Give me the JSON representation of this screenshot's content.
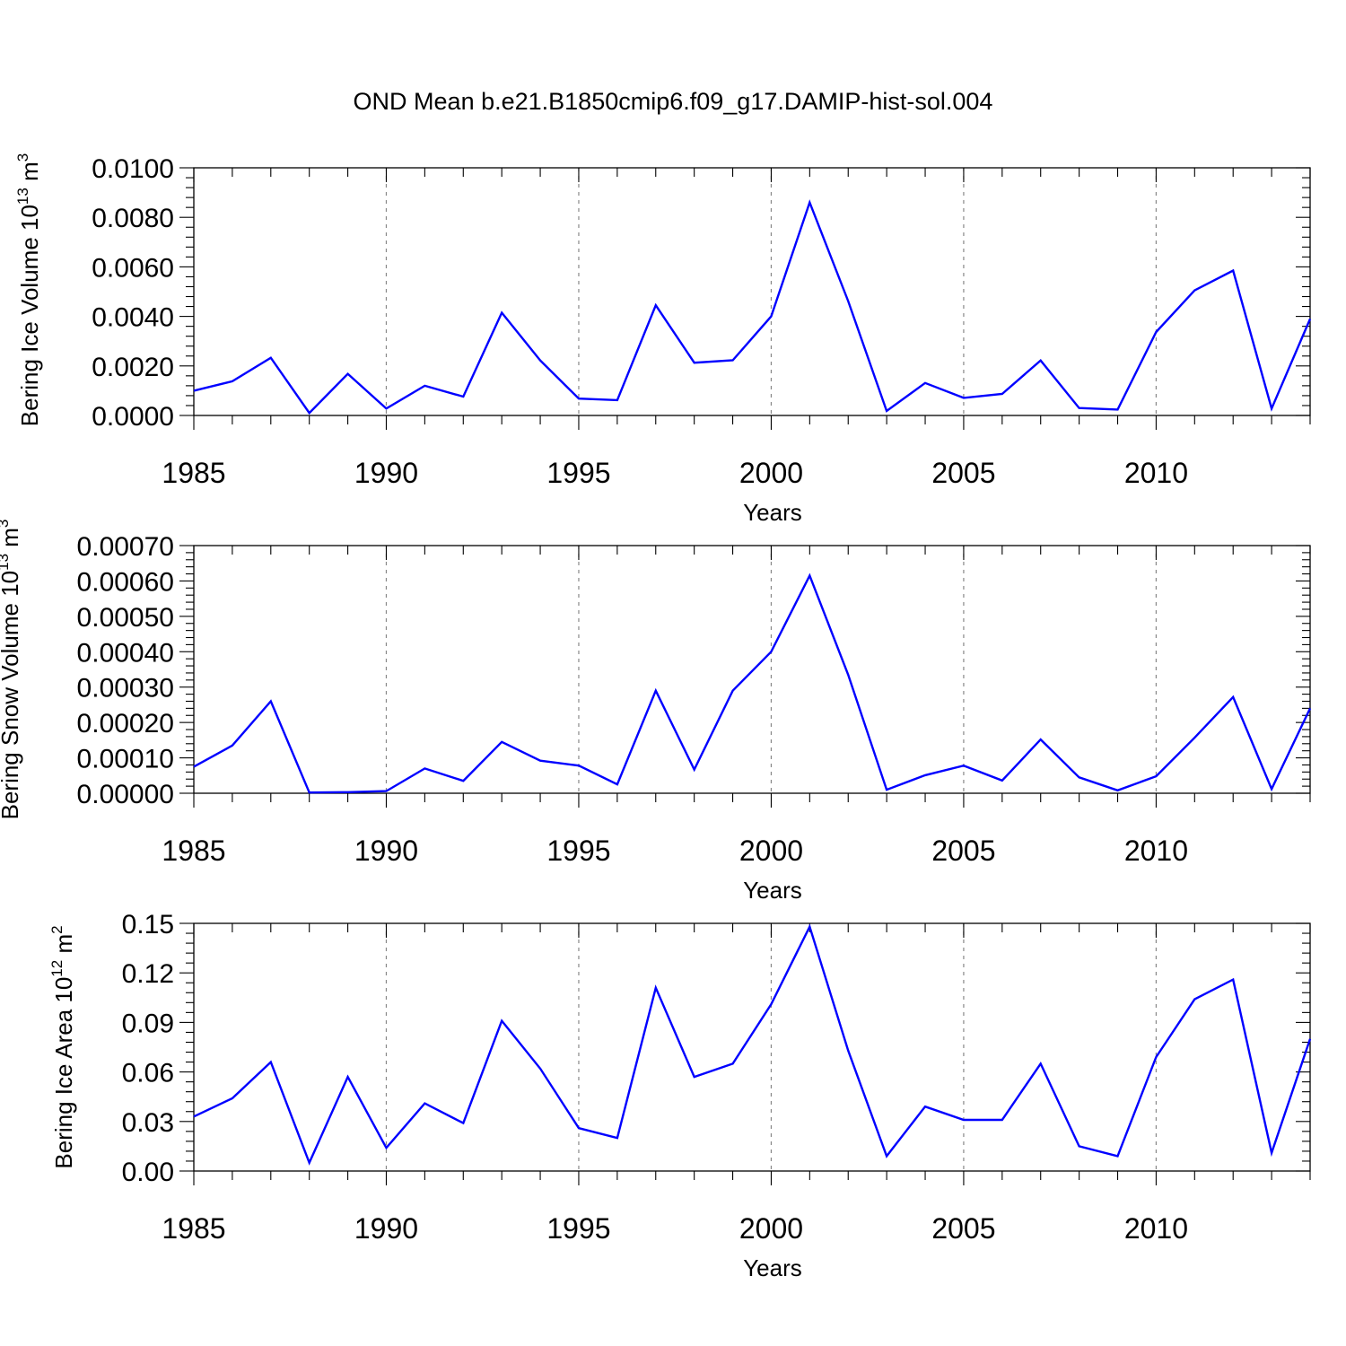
{
  "title": "OND Mean b.e21.B1850cmip6.f09_g17.DAMIP-hist-sol.004",
  "colors": {
    "line": "#0000ff",
    "axis": "#000000",
    "grid": "#888888"
  },
  "chart_data": [
    {
      "type": "line",
      "xlabel": "Years",
      "ylabel": "Bering Ice Volume 10",
      "ylabel_exponent": "13",
      "ylabel_unit": "m",
      "ylabel_unit_exponent": "3",
      "xlim": [
        1985,
        2014
      ],
      "ylim": [
        0,
        0.01
      ],
      "yticks": [
        "0.0100",
        "0.0080",
        "0.0060",
        "0.0040",
        "0.0020",
        "0.0000"
      ],
      "ytick_values": [
        0.01,
        0.008,
        0.006,
        0.004,
        0.002,
        0.0
      ],
      "xticks": [
        "1985",
        "1990",
        "1995",
        "2000",
        "2005",
        "2010"
      ],
      "xtick_values": [
        1985,
        1990,
        1995,
        2000,
        2005,
        2010
      ],
      "grid_x": [
        1990,
        1995,
        2000,
        2005,
        2010
      ],
      "x": [
        1985,
        1986,
        1987,
        1988,
        1989,
        1990,
        1991,
        1992,
        1993,
        1994,
        1995,
        1996,
        1997,
        1998,
        1999,
        2000,
        2001,
        2002,
        2003,
        2004,
        2005,
        2006,
        2007,
        2008,
        2009,
        2010,
        2011,
        2012,
        2013,
        2014
      ],
      "values": [
        0.001,
        0.00138,
        0.00233,
        0.0001,
        0.00168,
        0.00028,
        0.0012,
        0.00076,
        0.00415,
        0.00222,
        0.00068,
        0.00062,
        0.00445,
        0.00213,
        0.00223,
        0.004,
        0.0086,
        0.00462,
        0.00018,
        0.00131,
        0.00071,
        0.00087,
        0.00222,
        0.0003,
        0.00024,
        0.00337,
        0.00505,
        0.00585,
        0.00028,
        0.0039
      ]
    },
    {
      "type": "line",
      "xlabel": "Years",
      "ylabel": "Bering Snow Volume 10",
      "ylabel_exponent": "13",
      "ylabel_unit": "m",
      "ylabel_unit_exponent": "3",
      "xlim": [
        1985,
        2014
      ],
      "ylim": [
        0,
        0.0007
      ],
      "yticks": [
        "0.00070",
        "0.00060",
        "0.00050",
        "0.00040",
        "0.00030",
        "0.00020",
        "0.00010",
        "0.00000"
      ],
      "ytick_values": [
        0.0007,
        0.0006,
        0.0005,
        0.0004,
        0.0003,
        0.0002,
        0.0001,
        0.0
      ],
      "xticks": [
        "1985",
        "1990",
        "1995",
        "2000",
        "2005",
        "2010"
      ],
      "xtick_values": [
        1985,
        1990,
        1995,
        2000,
        2005,
        2010
      ],
      "grid_x": [
        1990,
        1995,
        2000,
        2005,
        2010
      ],
      "x": [
        1985,
        1986,
        1987,
        1988,
        1989,
        1990,
        1991,
        1992,
        1993,
        1994,
        1995,
        1996,
        1997,
        1998,
        1999,
        2000,
        2001,
        2002,
        2003,
        2004,
        2005,
        2006,
        2007,
        2008,
        2009,
        2010,
        2011,
        2012,
        2013,
        2014
      ],
      "values": [
        7.5e-05,
        0.000135,
        0.00026,
        2e-06,
        3e-06,
        6e-06,
        7e-05,
        3.5e-05,
        0.000145,
        9.2e-05,
        7.8e-05,
        2.5e-05,
        0.00029,
        6.7e-05,
        0.00029,
        0.0004,
        0.000615,
        0.000335,
        1e-05,
        5.1e-05,
        7.8e-05,
        3.6e-05,
        0.000152,
        4.5e-05,
        8e-06,
        4.8e-05,
        0.000157,
        0.000272,
        1.2e-05,
        0.00024
      ]
    },
    {
      "type": "line",
      "xlabel": "Years",
      "ylabel": "Bering Ice Area 10",
      "ylabel_exponent": "12",
      "ylabel_unit": "m",
      "ylabel_unit_exponent": "2",
      "xlim": [
        1985,
        2014
      ],
      "ylim": [
        0,
        0.15
      ],
      "yticks": [
        "0.15",
        "0.12",
        "0.09",
        "0.06",
        "0.03",
        "0.00"
      ],
      "ytick_values": [
        0.15,
        0.12,
        0.09,
        0.06,
        0.03,
        0.0
      ],
      "xticks": [
        "1985",
        "1990",
        "1995",
        "2000",
        "2005",
        "2010"
      ],
      "xtick_values": [
        1985,
        1990,
        1995,
        2000,
        2005,
        2010
      ],
      "grid_x": [
        1990,
        1995,
        2000,
        2005,
        2010
      ],
      "x": [
        1985,
        1986,
        1987,
        1988,
        1989,
        1990,
        1991,
        1992,
        1993,
        1994,
        1995,
        1996,
        1997,
        1998,
        1999,
        2000,
        2001,
        2002,
        2003,
        2004,
        2005,
        2006,
        2007,
        2008,
        2009,
        2010,
        2011,
        2012,
        2013,
        2014
      ],
      "values": [
        0.033,
        0.044,
        0.066,
        0.005,
        0.057,
        0.014,
        0.041,
        0.029,
        0.091,
        0.062,
        0.026,
        0.02,
        0.111,
        0.057,
        0.065,
        0.101,
        0.148,
        0.073,
        0.009,
        0.039,
        0.031,
        0.031,
        0.065,
        0.015,
        0.009,
        0.069,
        0.104,
        0.116,
        0.011,
        0.08
      ]
    }
  ]
}
